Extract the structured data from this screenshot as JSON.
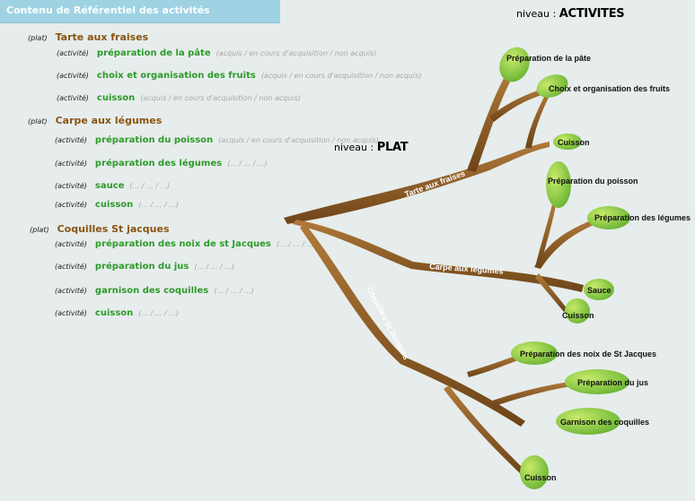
{
  "header": {
    "title": "Contenu de Référentiel des activités"
  },
  "levels": {
    "activites": {
      "prefix": "niveau :",
      "value": "ACTIVITES"
    },
    "plat": {
      "prefix": "niveau :",
      "value": "PLAT"
    }
  },
  "tags": {
    "plat": "(plat)",
    "activite": "(activité)"
  },
  "plats": [
    {
      "name": "Tarte aux fraises",
      "activities": [
        {
          "name": "préparation de la pâte",
          "hint": "(acquis / en cours d'acquisition / non acquis)"
        },
        {
          "name": "choix et organisation des fruits",
          "hint": "(acquis / en cours d'acquisition / non acquis)"
        },
        {
          "name": "cuisson",
          "hint": "(acquis / en cours d'acquisition / non acquis)"
        }
      ]
    },
    {
      "name": "Carpe aux légumes",
      "activities": [
        {
          "name": "préparation du poisson",
          "hint": "(acquis / en cours d'acquisition / non acquis)"
        },
        {
          "name": "préparation des légumes",
          "hint": "(... / ... / ...)"
        },
        {
          "name": "sauce",
          "hint": "(... / ... / ...)"
        },
        {
          "name": "cuisson",
          "hint": "(... / ... / ...)"
        }
      ]
    },
    {
      "name": "Coquilles St jacques",
      "activities": [
        {
          "name": "préparation des noix de st Jacques",
          "hint": "(... / ... / ...)"
        },
        {
          "name": "préparation du jus",
          "hint": "(... / ... / ...)"
        },
        {
          "name": "garnison des coquilles",
          "hint": "(... / ... / ...)"
        },
        {
          "name": "cuisson",
          "hint": "(... / ... / ...)"
        }
      ]
    }
  ],
  "tree": {
    "branches": [
      "Tarte aux fraises",
      "Carpe aux légumes",
      "Coquilles St Jacques"
    ],
    "leaves": {
      "tarte": [
        "Préparation de la pâte",
        "Choix et organisation des fruits",
        "Cuisson"
      ],
      "carpe": [
        "Préparation du poisson",
        "Préparation des légumes",
        "Sauce",
        "Cuisson"
      ],
      "coquilles": [
        "Préparation des noix de St Jacques",
        "Préparation du jus",
        "Garnison des coquilles",
        "Cuisson"
      ]
    }
  },
  "colors": {
    "header": "#9fd3e4",
    "plat": "#8a5412",
    "activity": "#2e9a2a",
    "hint": "#a9a9a9",
    "branch": "#8b5a26",
    "leaf": "#8cc63f"
  }
}
